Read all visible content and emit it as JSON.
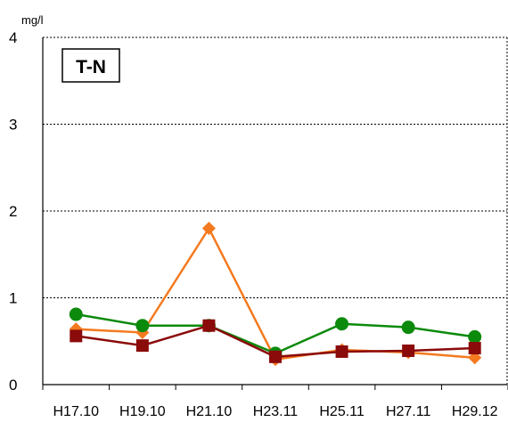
{
  "chart_data": {
    "type": "line",
    "unit_label": "mg/l",
    "inset_label": "T-N",
    "categories": [
      "H17.10",
      "H19.10",
      "H21.10",
      "H23.11",
      "H25.11",
      "H27.11",
      "H29.12"
    ],
    "ylim": [
      0,
      4
    ],
    "yticks": [
      "0",
      "1",
      "2",
      "3",
      "4"
    ],
    "grid": "horizontal dashed",
    "series": [
      {
        "color": "#F47A1F",
        "marker": "diamond",
        "values": [
          0.64,
          0.6,
          1.8,
          0.29,
          0.4,
          0.37,
          0.31
        ]
      },
      {
        "color": "#0C8A0C",
        "marker": "circle",
        "values": [
          0.81,
          0.68,
          0.68,
          0.36,
          0.7,
          0.66,
          0.55
        ]
      },
      {
        "color": "#8B0A0A",
        "marker": "square",
        "values": [
          0.56,
          0.45,
          0.68,
          0.32,
          0.38,
          0.39,
          0.42
        ]
      }
    ]
  }
}
